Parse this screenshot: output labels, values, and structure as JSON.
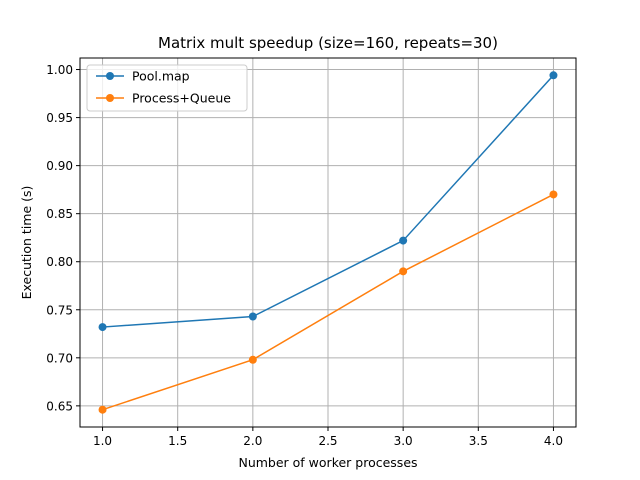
{
  "chart_data": {
    "type": "line",
    "title": "Matrix mult speedup (size=160, repeats=30)",
    "xlabel": "Number of worker processes",
    "ylabel": "Execution time (s)",
    "xlim": [
      0.85,
      4.15
    ],
    "ylim": [
      0.628,
      1.012
    ],
    "grid": true,
    "legend_position": "top-left",
    "x_ticks": [
      1.0,
      1.5,
      2.0,
      2.5,
      3.0,
      3.5,
      4.0
    ],
    "x_tick_labels": [
      "1.0",
      "1.5",
      "2.0",
      "2.5",
      "3.0",
      "3.5",
      "4.0"
    ],
    "y_ticks": [
      0.65,
      0.7,
      0.75,
      0.8,
      0.85,
      0.9,
      0.95,
      1.0
    ],
    "y_tick_labels": [
      "0.65",
      "0.70",
      "0.75",
      "0.80",
      "0.85",
      "0.90",
      "0.95",
      "1.00"
    ],
    "x": [
      1,
      2,
      3,
      4
    ],
    "series": [
      {
        "name": "Pool.map",
        "color": "#1f77b4",
        "values": [
          0.732,
          0.743,
          0.822,
          0.994
        ]
      },
      {
        "name": "Process+Queue",
        "color": "#ff7f0e",
        "values": [
          0.646,
          0.698,
          0.79,
          0.87
        ]
      }
    ]
  }
}
